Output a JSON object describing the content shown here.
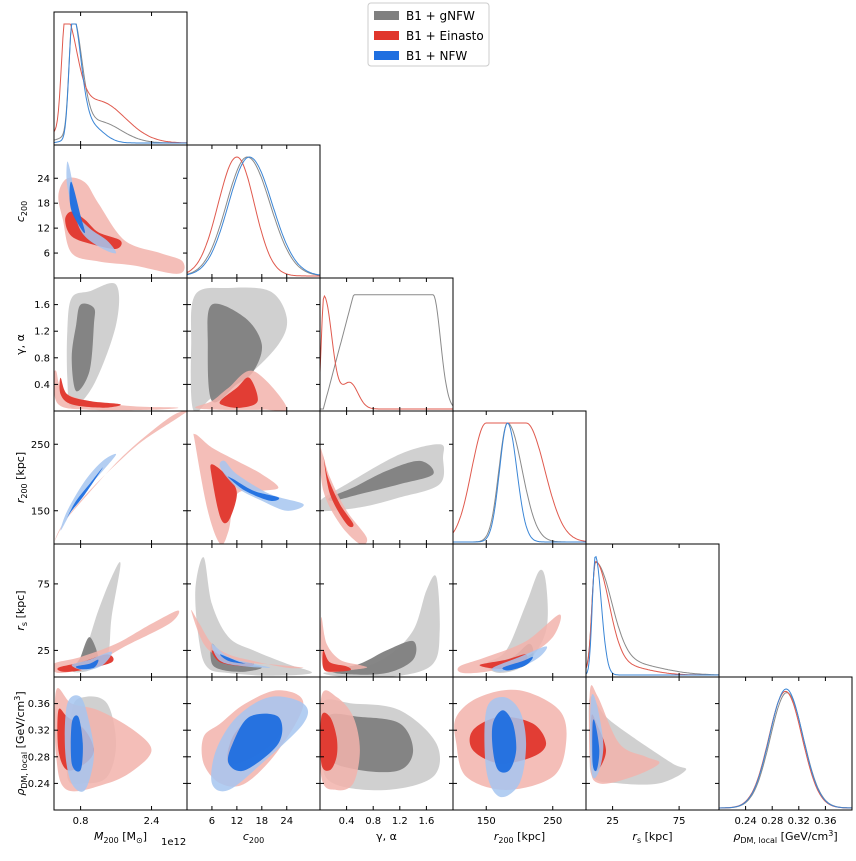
{
  "chart_data": {
    "type": "corner",
    "title": "",
    "legend": {
      "placement": "top-center",
      "entries": [
        {
          "label": "B1 + gNFW",
          "color": "#808080",
          "light": "#c8c8c8",
          "line": "#8a8a8a"
        },
        {
          "label": "B1 + Einasto",
          "color": "#e0362c",
          "light": "#f2b3ab",
          "line": "#e05a4e"
        },
        {
          "label": "B1 + NFW",
          "color": "#1f6fe0",
          "light": "#a6c6f0",
          "line": "#3b86d6"
        }
      ]
    },
    "offset_text": "1e12",
    "parameters": [
      {
        "key": "M200",
        "label_main": "M",
        "label_sub": "200",
        "label_unit": " [M",
        "label_unit_sub": "⊙",
        "label_unit_end": "]",
        "range": [
          0.2,
          3.2
        ],
        "ticks": [
          0.8,
          2.4
        ],
        "tick_labels": [
          "0.8",
          "2.4"
        ]
      },
      {
        "key": "c200",
        "label_main": "c",
        "label_sub": "200",
        "label_unit": "",
        "label_unit_sub": "",
        "label_unit_end": "",
        "range": [
          0,
          32
        ],
        "ticks": [
          6,
          12,
          18,
          24
        ],
        "tick_labels": [
          "6",
          "12",
          "18",
          "24"
        ]
      },
      {
        "key": "gamma_alpha",
        "label_main": "γ, α",
        "label_sub": "",
        "label_unit": "",
        "label_unit_sub": "",
        "label_unit_end": "",
        "range": [
          0,
          2.0
        ],
        "ticks": [
          0.4,
          0.8,
          1.2,
          1.6
        ],
        "tick_labels": [
          "0.4",
          "0.8",
          "1.2",
          "1.6"
        ]
      },
      {
        "key": "r200",
        "label_main": "r",
        "label_sub": "200",
        "label_unit": " [kpc]",
        "label_unit_sub": "",
        "label_unit_end": "",
        "range": [
          100,
          300
        ],
        "ticks": [
          150,
          250
        ],
        "tick_labels": [
          "150",
          "250"
        ]
      },
      {
        "key": "rs",
        "label_main": "r",
        "label_sub": "s",
        "label_unit": " [kpc]",
        "label_unit_sub": "",
        "label_unit_end": "",
        "range": [
          5,
          105
        ],
        "ticks": [
          25,
          75
        ],
        "tick_labels": [
          "25",
          "75"
        ]
      },
      {
        "key": "rho",
        "label_main": "ρ",
        "label_sub": "DM, local",
        "label_unit": " [GeV/cm",
        "label_unit_sub": "3",
        "label_unit_end": "]",
        "range": [
          0.2,
          0.4
        ],
        "ticks": [
          0.24,
          0.28,
          0.32,
          0.36
        ],
        "tick_labels": [
          "0.24",
          "0.28",
          "0.32",
          "0.36"
        ]
      }
    ],
    "series": [
      {
        "name": "B1 + gNFW",
        "color": "#808080"
      },
      {
        "name": "B1 + Einasto",
        "color": "#e0362c"
      },
      {
        "name": "B1 + NFW",
        "color": "#1f6fe0"
      }
    ],
    "diag_peaks": {
      "M200": {
        "B1 + Einasto": 0.4,
        "B1 + NFW": 0.6,
        "B1 + gNFW": 0.6
      },
      "c200": {
        "B1 + Einasto": 12,
        "B1 + NFW": 14,
        "B1 + gNFW": 14
      },
      "gamma_alpha": {
        "B1 + Einasto": 0.05,
        "B1 + gNFW": 1.2
      },
      "r200": {
        "B1 + Einasto": 170,
        "B1 + NFW": 180,
        "B1 + gNFW": 180
      },
      "rs": {
        "B1 + Einasto": 12,
        "B1 + NFW": 12,
        "B1 + gNFW": 12
      },
      "rho": {
        "B1 + Einasto": 0.3,
        "B1 + NFW": 0.3,
        "B1 + gNFW": 0.3
      }
    }
  }
}
